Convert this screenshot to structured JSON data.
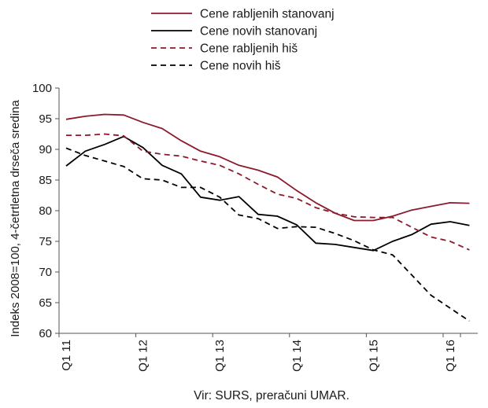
{
  "chart_data": {
    "type": "line",
    "ylabel": "Indeks 2008=100, 4-četrtletna drseča sredina",
    "ylim": [
      60,
      100
    ],
    "yticks": [
      "100",
      "95",
      "90",
      "85",
      "80",
      "75",
      "70",
      "65",
      "60"
    ],
    "ytick_values": [
      100,
      95,
      90,
      85,
      80,
      75,
      70,
      65,
      60
    ],
    "xtick_labels": [
      "Q1 11",
      "Q1 12",
      "Q1 13",
      "Q1 14",
      "Q1 15",
      "Q1 16"
    ],
    "xtick_index": [
      0,
      4,
      8,
      12,
      16,
      20
    ],
    "x": [
      "Q1 11",
      "Q2 11",
      "Q3 11",
      "Q4 11",
      "Q1 12",
      "Q2 12",
      "Q3 12",
      "Q4 12",
      "Q1 13",
      "Q2 13",
      "Q3 13",
      "Q4 13",
      "Q1 14",
      "Q2 14",
      "Q3 14",
      "Q4 14",
      "Q1 15",
      "Q2 15",
      "Q3 15",
      "Q4 15",
      "Q1 16",
      "Q2 16"
    ],
    "grid": false,
    "legend_position": "top",
    "series": [
      {
        "name": "Cene rabljenih stanovanj",
        "color": "#8b1a2b",
        "dash": "solid",
        "values": [
          94.9,
          95.4,
          95.7,
          95.6,
          94.4,
          93.4,
          91.4,
          89.7,
          88.8,
          87.4,
          86.6,
          85.5,
          83.3,
          81.3,
          79.6,
          78.4,
          78.4,
          79.1,
          80.1,
          80.7,
          81.3,
          81.2
        ]
      },
      {
        "name": "Cene novih stanovanj",
        "color": "#000000",
        "dash": "solid",
        "values": [
          87.3,
          89.7,
          90.8,
          92.1,
          90.3,
          87.4,
          86.0,
          82.2,
          81.7,
          82.3,
          79.4,
          79.1,
          77.7,
          74.7,
          74.5,
          74.0,
          73.5,
          75.0,
          76.1,
          77.8,
          78.2,
          77.6
        ]
      },
      {
        "name": "Cene rabljenih hiš",
        "color": "#8b1a2b",
        "dash": "dashed",
        "values": [
          92.3,
          92.3,
          92.5,
          92.2,
          89.7,
          89.2,
          88.9,
          88.1,
          87.4,
          86.0,
          84.3,
          82.7,
          82.0,
          80.5,
          79.6,
          79.0,
          78.9,
          78.9,
          77.3,
          75.7,
          75.0,
          73.6
        ]
      },
      {
        "name": "Cene novih hiš",
        "color": "#000000",
        "dash": "dashed",
        "values": [
          90.2,
          89.0,
          88.1,
          87.2,
          85.2,
          85.0,
          83.8,
          83.8,
          82.2,
          79.3,
          78.7,
          77.1,
          77.4,
          77.3,
          76.3,
          75.1,
          73.6,
          72.8,
          69.5,
          66.2,
          64.1,
          62.0
        ]
      }
    ],
    "source": "Vir: SURS, preračuni UMAR."
  }
}
